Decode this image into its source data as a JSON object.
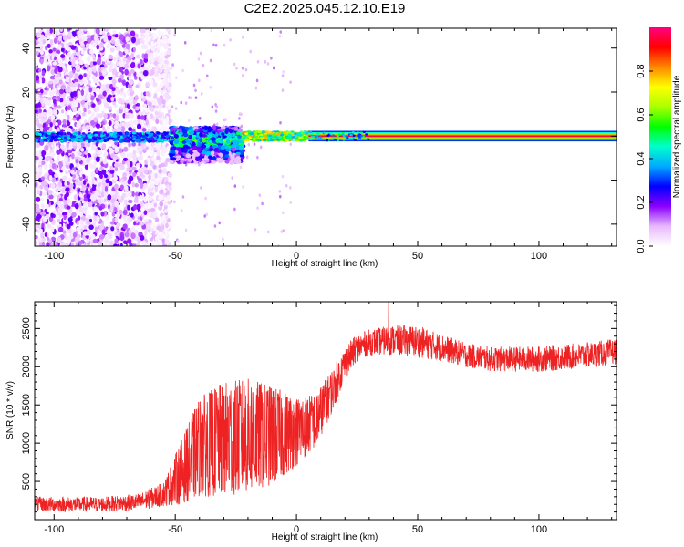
{
  "chart_data": [
    {
      "type": "heatmap",
      "title": "C2E2.2025.045.12.10.E19",
      "xlabel": "Height of straight line (km)",
      "ylabel": "Frequency (Hz)",
      "xlim": [
        -108,
        132
      ],
      "ylim": [
        -50,
        49
      ],
      "xticks": [
        -100,
        -50,
        0,
        50,
        100
      ],
      "xtick_labels": [
        "-100",
        "-50",
        "0",
        "50",
        "100"
      ],
      "yticks": [
        -40,
        -20,
        0,
        20,
        40
      ],
      "ytick_labels": [
        "-40",
        "-20",
        "0",
        "20",
        "40"
      ],
      "colorbar": {
        "label": "Normalized spectral amplitude",
        "range": [
          0,
          1
        ],
        "ticks": [
          0.0,
          0.2,
          0.4,
          0.6,
          0.8
        ],
        "tick_labels": [
          "0.0",
          "0.2",
          "0.4",
          "0.6",
          "0.8"
        ],
        "colormap": [
          "#ffffff",
          "#e8b8ff",
          "#8a00ff",
          "#0000ff",
          "#00aaff",
          "#00ffcc",
          "#00ff00",
          "#aaff00",
          "#ffff00",
          "#ff8800",
          "#ff0000",
          "#ff0080"
        ]
      },
      "regions": [
        {
          "name": "noise",
          "x_range": [
            -108,
            -52
          ],
          "freq_range": [
            -50,
            49
          ],
          "amplitude": 0.12
        },
        {
          "name": "scatter band",
          "x_range": [
            -52,
            -22
          ],
          "freq_range": [
            -12,
            4
          ],
          "amplitude": 0.45
        },
        {
          "name": "narrow band",
          "x_range": [
            -22,
            5
          ],
          "freq_range": [
            -2,
            2
          ],
          "amplitude": 0.8
        },
        {
          "name": "steady tone",
          "x_range": [
            5,
            132
          ],
          "freq_range": [
            -1,
            1
          ],
          "amplitude": 0.95
        }
      ],
      "grid": false
    },
    {
      "type": "line",
      "xlabel": "Height of straight line (km)",
      "ylabel": "SNR (10 * v/v)",
      "xlim": [
        -108,
        132
      ],
      "ylim": [
        0,
        2850
      ],
      "xticks": [
        -100,
        -50,
        0,
        50,
        100
      ],
      "xtick_labels": [
        "-100",
        "-50",
        "0",
        "50",
        "100"
      ],
      "yticks": [
        500,
        1000,
        1500,
        2000,
        2500
      ],
      "ytick_labels": [
        "500",
        "1000",
        "1500",
        "2000",
        "2500"
      ],
      "color": "#ee2222",
      "envelope": {
        "x": [
          -108,
          -80,
          -65,
          -55,
          -48,
          -40,
          -30,
          -20,
          -10,
          0,
          8,
          15,
          20,
          25,
          30,
          40,
          50,
          60,
          70,
          80,
          100,
          120,
          132
        ],
        "mean": [
          200,
          200,
          230,
          330,
          600,
          950,
          1050,
          1100,
          1100,
          1150,
          1300,
          1700,
          2050,
          2250,
          2320,
          2350,
          2330,
          2250,
          2150,
          2100,
          2100,
          2150,
          2200
        ],
        "spread": [
          100,
          100,
          110,
          160,
          400,
          650,
          750,
          750,
          650,
          450,
          350,
          280,
          220,
          180,
          170,
          200,
          210,
          180,
          160,
          160,
          170,
          170,
          170
        ]
      },
      "max_point": {
        "x": 38,
        "y": 2850
      },
      "grid": false
    }
  ]
}
